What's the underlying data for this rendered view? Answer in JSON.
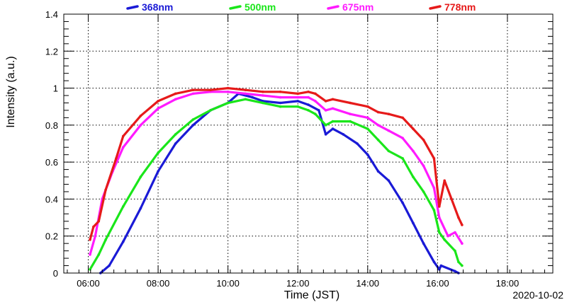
{
  "chart_data": {
    "type": "scatter",
    "xlabel": "Time (JST)",
    "ylabel": "Intensity (a.u.)",
    "date_label": "2020-10-02",
    "xlim": [
      5.3,
      19.3
    ],
    "ylim": [
      0,
      1.4
    ],
    "grid": true,
    "legend_position": "top",
    "x_ticks": [
      {
        "value": 6,
        "label": "06:00"
      },
      {
        "value": 8,
        "label": "08:00"
      },
      {
        "value": 10,
        "label": "10:00"
      },
      {
        "value": 12,
        "label": "12:00"
      },
      {
        "value": 14,
        "label": "14:00"
      },
      {
        "value": 16,
        "label": "16:00"
      },
      {
        "value": 18,
        "label": "18:00"
      }
    ],
    "y_ticks": [
      {
        "value": 0,
        "label": "0"
      },
      {
        "value": 0.2,
        "label": "0.2"
      },
      {
        "value": 0.4,
        "label": "0.4"
      },
      {
        "value": 0.6,
        "label": "0.6"
      },
      {
        "value": 0.8,
        "label": "0.8"
      },
      {
        "value": 1.0,
        "label": "1"
      },
      {
        "value": 1.2,
        "label": "1.2"
      },
      {
        "value": 1.4,
        "label": "1.4"
      }
    ],
    "series": [
      {
        "name": "368nm",
        "color": "#1a1ad6",
        "x": [
          6.35,
          6.6,
          7.0,
          7.5,
          8.0,
          8.5,
          9.0,
          9.5,
          10.0,
          10.3,
          10.7,
          11.0,
          11.5,
          12.0,
          12.3,
          12.6,
          12.8,
          13.0,
          13.3,
          13.7,
          14.0,
          14.3,
          14.6,
          15.0,
          15.3,
          15.6,
          15.9,
          16.05,
          16.1,
          16.5,
          16.6
        ],
        "y": [
          0.0,
          0.04,
          0.17,
          0.35,
          0.55,
          0.7,
          0.8,
          0.88,
          0.92,
          0.97,
          0.95,
          0.93,
          0.92,
          0.93,
          0.91,
          0.88,
          0.75,
          0.78,
          0.75,
          0.7,
          0.64,
          0.55,
          0.5,
          0.38,
          0.27,
          0.16,
          0.06,
          0.02,
          0.04,
          0.01,
          0.0
        ]
      },
      {
        "name": "500nm",
        "color": "#1ae61a",
        "x": [
          6.05,
          6.3,
          6.5,
          7.0,
          7.5,
          8.0,
          8.5,
          9.0,
          9.5,
          10.0,
          10.5,
          11.0,
          11.5,
          12.0,
          12.3,
          12.5,
          12.8,
          13.0,
          13.5,
          14.0,
          14.3,
          14.6,
          15.0,
          15.3,
          15.6,
          15.9,
          16.05,
          16.2,
          16.5,
          16.6,
          16.7
        ],
        "y": [
          0.02,
          0.1,
          0.18,
          0.36,
          0.52,
          0.65,
          0.75,
          0.83,
          0.88,
          0.92,
          0.94,
          0.92,
          0.9,
          0.9,
          0.88,
          0.86,
          0.8,
          0.82,
          0.82,
          0.78,
          0.72,
          0.66,
          0.62,
          0.52,
          0.44,
          0.34,
          0.22,
          0.18,
          0.12,
          0.06,
          0.04
        ]
      },
      {
        "name": "675nm",
        "color": "#ff1aff",
        "x": [
          6.05,
          6.2,
          6.4,
          6.7,
          7.0,
          7.5,
          8.0,
          8.5,
          9.0,
          9.5,
          10.0,
          10.5,
          11.0,
          11.5,
          12.0,
          12.3,
          12.5,
          12.8,
          13.0,
          13.5,
          14.0,
          14.3,
          14.6,
          15.0,
          15.3,
          15.6,
          15.9,
          16.05,
          16.3,
          16.5,
          16.7
        ],
        "y": [
          0.1,
          0.2,
          0.4,
          0.55,
          0.68,
          0.8,
          0.89,
          0.94,
          0.97,
          0.98,
          0.98,
          0.97,
          0.96,
          0.95,
          0.95,
          0.95,
          0.93,
          0.88,
          0.89,
          0.86,
          0.84,
          0.8,
          0.77,
          0.73,
          0.66,
          0.58,
          0.46,
          0.3,
          0.2,
          0.22,
          0.16
        ]
      },
      {
        "name": "778nm",
        "color": "#e61a1a",
        "x": [
          6.05,
          6.15,
          6.3,
          6.5,
          6.8,
          7.0,
          7.5,
          8.0,
          8.5,
          9.0,
          9.5,
          10.0,
          10.5,
          11.0,
          11.5,
          12.0,
          12.3,
          12.5,
          12.8,
          13.0,
          13.5,
          14.0,
          14.3,
          14.6,
          15.0,
          15.3,
          15.6,
          15.9,
          16.05,
          16.2,
          16.4,
          16.6,
          16.7
        ],
        "y": [
          0.18,
          0.25,
          0.28,
          0.45,
          0.62,
          0.74,
          0.85,
          0.93,
          0.97,
          0.99,
          0.99,
          1.0,
          0.99,
          0.98,
          0.98,
          0.97,
          0.98,
          0.97,
          0.93,
          0.94,
          0.92,
          0.9,
          0.87,
          0.86,
          0.84,
          0.78,
          0.72,
          0.62,
          0.36,
          0.5,
          0.4,
          0.3,
          0.26
        ]
      }
    ]
  }
}
